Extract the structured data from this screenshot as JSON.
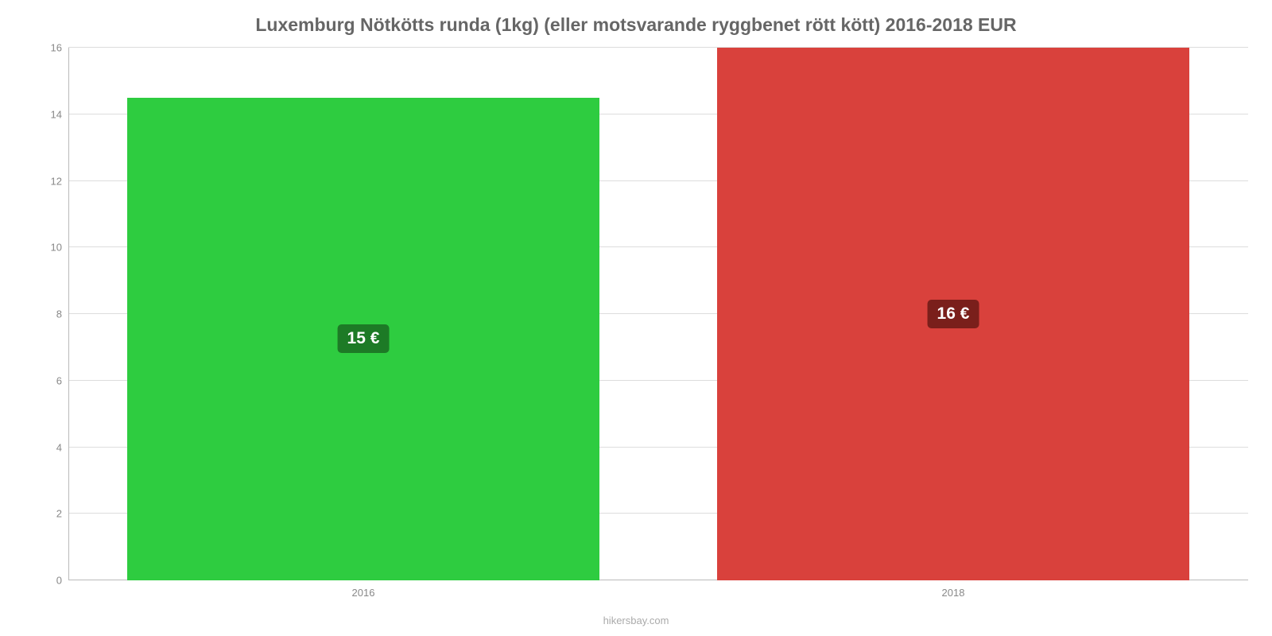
{
  "chart": {
    "type": "bar",
    "title": "Luxemburg Nötkötts runda (1kg) (eller motsvarande ryggbenet rött kött) 2016-2018 EUR",
    "title_fontsize": 23,
    "title_color": "#666666",
    "categories": [
      "2016",
      "2018"
    ],
    "values": [
      14.5,
      16
    ],
    "value_labels": [
      "15 €",
      "16 €"
    ],
    "bar_colors": [
      "#2ecc40",
      "#d9413c"
    ],
    "label_bg_colors": [
      "#1d7a26",
      "#7a1f1b"
    ],
    "ylim": [
      0,
      16
    ],
    "ytick_step": 2,
    "y_ticks": [
      0,
      2,
      4,
      6,
      8,
      10,
      12,
      14,
      16
    ],
    "background_color": "#ffffff",
    "grid_color": "#dddddd",
    "axis_color": "#bbbbbb",
    "tick_fontsize": 13,
    "tick_color": "#888888",
    "bar_width_pct": 40,
    "gap_pct": 10,
    "label_fontsize": 21,
    "attribution": "hikersbay.com",
    "attribution_color": "#aaaaaa"
  }
}
